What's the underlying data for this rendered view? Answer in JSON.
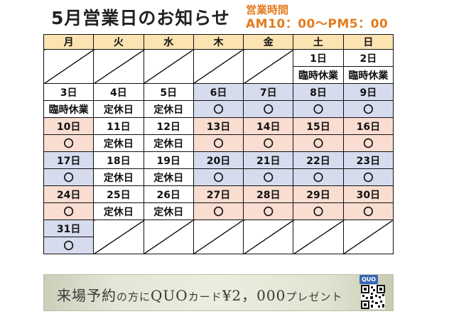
{
  "title": "5月営業日のお知らせ",
  "hours": {
    "label": "営業時間",
    "value": "AM10：00～PM5：00"
  },
  "weekdays": [
    "月",
    "火",
    "水",
    "木",
    "金",
    "土",
    "日"
  ],
  "weeks": [
    {
      "days": [
        "",
        "",
        "",
        "",
        "",
        "1日",
        "2日"
      ],
      "status": [
        "",
        "",
        "",
        "",
        "",
        "臨時休業",
        "臨時休業"
      ]
    },
    {
      "days": [
        "3日",
        "4日",
        "5日",
        "6日",
        "7日",
        "8日",
        "9日"
      ],
      "status": [
        "臨時休業",
        "定休日",
        "定休日",
        "〇",
        "〇",
        "〇",
        "〇"
      ]
    },
    {
      "days": [
        "10日",
        "11日",
        "12日",
        "13日",
        "14日",
        "15日",
        "16日"
      ],
      "status": [
        "〇",
        "定休日",
        "定休日",
        "〇",
        "〇",
        "〇",
        "〇"
      ]
    },
    {
      "days": [
        "17日",
        "18日",
        "19日",
        "20日",
        "21日",
        "22日",
        "23日"
      ],
      "status": [
        "〇",
        "定休日",
        "定休日",
        "〇",
        "〇",
        "〇",
        "〇"
      ]
    },
    {
      "days": [
        "24日",
        "25日",
        "26日",
        "27日",
        "28日",
        "29日",
        "30日"
      ],
      "status": [
        "〇",
        "定休日",
        "定休日",
        "〇",
        "〇",
        "〇",
        "〇"
      ]
    },
    {
      "days": [
        "31日",
        "",
        "",
        "",
        "",
        "",
        ""
      ],
      "status": [
        "〇",
        "",
        "",
        "",
        "",
        "",
        ""
      ]
    }
  ],
  "banner": {
    "part1": "来場予約",
    "part2": "の方に",
    "part3": "QUO",
    "part4": "カード",
    "part5": "¥2，000",
    "part6": "プレゼント",
    "logo": "QUO"
  },
  "colors": {
    "title": "#222222",
    "hours": "#e37b1c",
    "header_bg": "#fbe3b2",
    "blue": "#d6dcee",
    "pink": "#f9ddd1",
    "closed_red": "#e0201a"
  }
}
